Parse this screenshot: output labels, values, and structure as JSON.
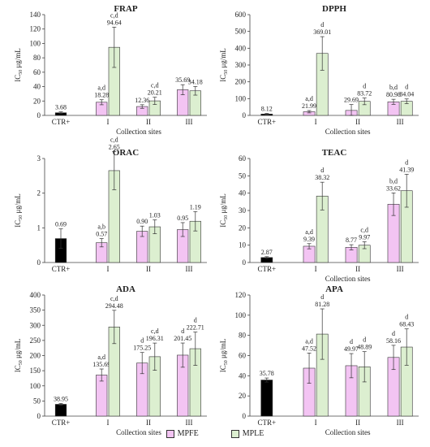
{
  "palette": {
    "ctr": "#000000",
    "mpfe": "#F3C4F3",
    "mple": "#DCEFD0",
    "stroke": "#333333"
  },
  "legend": {
    "items": [
      {
        "key": "mpfe",
        "label": "MPFE"
      },
      {
        "key": "mple",
        "label": "MPLE"
      }
    ]
  },
  "chart_data": [
    {
      "type": "bar",
      "title": "FRAP",
      "ylabel_main": "IC",
      "ylabel_sub": "50",
      "ylabel_unit": " μg/mL",
      "xlabel": "Collection sites",
      "ylim": [
        0,
        140
      ],
      "yticks": [
        0,
        20,
        40,
        60,
        80,
        100,
        120,
        140
      ],
      "control": {
        "label": "CTR+",
        "value": 3.68,
        "value_label": "3.68",
        "err": 1.2
      },
      "categories": [
        "I",
        "II",
        "III"
      ],
      "series": [
        {
          "key": "mpfe",
          "name": "MPFE",
          "values": [
            18.28,
            12.36,
            35.69
          ],
          "value_labels": [
            "18.28",
            "12.36",
            "35.69"
          ],
          "errors": [
            3.5,
            2.5,
            7
          ],
          "sig": [
            "a,d",
            "",
            ""
          ]
        },
        {
          "key": "mple",
          "name": "MPLE",
          "values": [
            94.64,
            20.21,
            34.18
          ],
          "value_labels": [
            "94.64",
            "20.21",
            "34.18"
          ],
          "errors": [
            28,
            5,
            6
          ],
          "sig": [
            "c,d",
            "c,d",
            ""
          ]
        }
      ]
    },
    {
      "type": "bar",
      "title": "DPPH",
      "ylabel_main": "IC",
      "ylabel_sub": "50",
      "ylabel_unit": " μg/mL",
      "xlabel": "Collection sites",
      "ylim": [
        0,
        600
      ],
      "yticks": [
        0,
        100,
        200,
        300,
        400,
        500,
        600
      ],
      "control": {
        "label": "CTR+",
        "value": 8.12,
        "value_label": "8.12",
        "err": 4
      },
      "categories": [
        "I",
        "II",
        "III"
      ],
      "series": [
        {
          "key": "mpfe",
          "name": "MPFE",
          "values": [
            21.99,
            29.69,
            80.98
          ],
          "value_labels": [
            "21.99",
            "29.69",
            "80.98"
          ],
          "errors": [
            7,
            35,
            15
          ],
          "sig": [
            "a,d",
            "",
            "b,d"
          ]
        },
        {
          "key": "mple",
          "name": "MPLE",
          "values": [
            369.01,
            83.72,
            84.04
          ],
          "value_labels": [
            "369.01",
            "83.72",
            "84.04"
          ],
          "errors": [
            100,
            20,
            14
          ],
          "sig": [
            "d",
            "d",
            "d"
          ]
        }
      ]
    },
    {
      "type": "bar",
      "title": "ORAC",
      "ylabel_main": "IC",
      "ylabel_sub": "50",
      "ylabel_unit": " μg/mL",
      "xlabel": "",
      "ylim": [
        0,
        3
      ],
      "yticks": [
        0,
        1,
        2,
        3
      ],
      "control": {
        "label": "CTR+",
        "value": 0.69,
        "value_label": "0.69",
        "err": 0.28
      },
      "categories": [
        "I",
        "II",
        "III"
      ],
      "series": [
        {
          "key": "mpfe",
          "name": "MPFE",
          "values": [
            0.57,
            0.9,
            0.95
          ],
          "value_labels": [
            "0.57",
            "0.90",
            "0.95"
          ],
          "errors": [
            0.12,
            0.15,
            0.2
          ],
          "sig": [
            "a,b",
            "",
            ""
          ]
        },
        {
          "key": "mple",
          "name": "MPLE",
          "values": [
            2.65,
            1.03,
            1.19
          ],
          "value_labels": [
            "2.65",
            "1.03",
            "1.19"
          ],
          "errors": [
            0.55,
            0.2,
            0.28
          ],
          "sig": [
            "c,d",
            "",
            ""
          ]
        }
      ]
    },
    {
      "type": "bar",
      "title": "TEAC",
      "ylabel_main": "IC",
      "ylabel_sub": "50",
      "ylabel_unit": " μg/mL",
      "xlabel": "Collection sites",
      "ylim": [
        0,
        60
      ],
      "yticks": [
        0,
        10,
        20,
        30,
        40,
        50,
        60
      ],
      "control": {
        "label": "CTR+",
        "value": 2.87,
        "value_label": "2.87",
        "err": 0.5
      },
      "categories": [
        "I",
        "II",
        "III"
      ],
      "series": [
        {
          "key": "mpfe",
          "name": "MPFE",
          "values": [
            9.39,
            8.77,
            33.62
          ],
          "value_labels": [
            "9.39",
            "8.77",
            "33.62"
          ],
          "errors": [
            1.5,
            1.5,
            6.5
          ],
          "sig": [
            "a,d",
            "",
            "b,d"
          ]
        },
        {
          "key": "mple",
          "name": "MPLE",
          "values": [
            38.32,
            9.97,
            41.39
          ],
          "value_labels": [
            "38.32",
            "9.97",
            "41.39"
          ],
          "errors": [
            8,
            2,
            9.5
          ],
          "sig": [
            "d",
            "c,d",
            "d"
          ]
        }
      ]
    },
    {
      "type": "bar",
      "title": "ADA",
      "ylabel_main": "IC",
      "ylabel_sub": "50",
      "ylabel_unit": " μg/mL",
      "xlabel": "Collection sites",
      "ylim": [
        0,
        400
      ],
      "yticks": [
        0,
        50,
        100,
        150,
        200,
        250,
        300,
        350,
        400
      ],
      "control": {
        "label": "CTR+",
        "value": 38.95,
        "value_label": "38.95",
        "err": 3
      },
      "categories": [
        "I",
        "II",
        "III"
      ],
      "series": [
        {
          "key": "mpfe",
          "name": "MPFE",
          "values": [
            135.69,
            175.25,
            201.45
          ],
          "value_labels": [
            "135.69",
            "175.25",
            "201.45"
          ],
          "errors": [
            20,
            35,
            40
          ],
          "sig": [
            "a,d",
            "d",
            "d"
          ]
        },
        {
          "key": "mple",
          "name": "MPLE",
          "values": [
            294.48,
            196.31,
            222.71
          ],
          "value_labels": [
            "294.48",
            "196.31",
            "222.71"
          ],
          "errors": [
            55,
            45,
            55
          ],
          "sig": [
            "c,d",
            "c,d",
            "d"
          ]
        }
      ]
    },
    {
      "type": "bar",
      "title": "APA",
      "ylabel_main": "IC",
      "ylabel_sub": "50",
      "ylabel_unit": " μg/mL",
      "xlabel": "Collection sites",
      "ylim": [
        0,
        120
      ],
      "yticks": [
        0,
        20,
        40,
        60,
        80,
        100,
        120
      ],
      "control": {
        "label": "CTR+",
        "value": 35.78,
        "value_label": "35.78",
        "err": 2
      },
      "categories": [
        "I",
        "II",
        "III"
      ],
      "series": [
        {
          "key": "mpfe",
          "name": "MPFE",
          "values": [
            47.52,
            49.97,
            58.16
          ],
          "value_labels": [
            "47.52",
            "49.97",
            "58.16"
          ],
          "errors": [
            15,
            12,
            12
          ],
          "sig": [
            "a,d",
            "d",
            "d"
          ]
        },
        {
          "key": "mple",
          "name": "MPLE",
          "values": [
            81.28,
            48.89,
            68.43
          ],
          "value_labels": [
            "81.28",
            "48.89",
            "68.43"
          ],
          "errors": [
            25,
            15,
            18
          ],
          "sig": [
            "d",
            "d",
            "d"
          ]
        }
      ]
    }
  ]
}
